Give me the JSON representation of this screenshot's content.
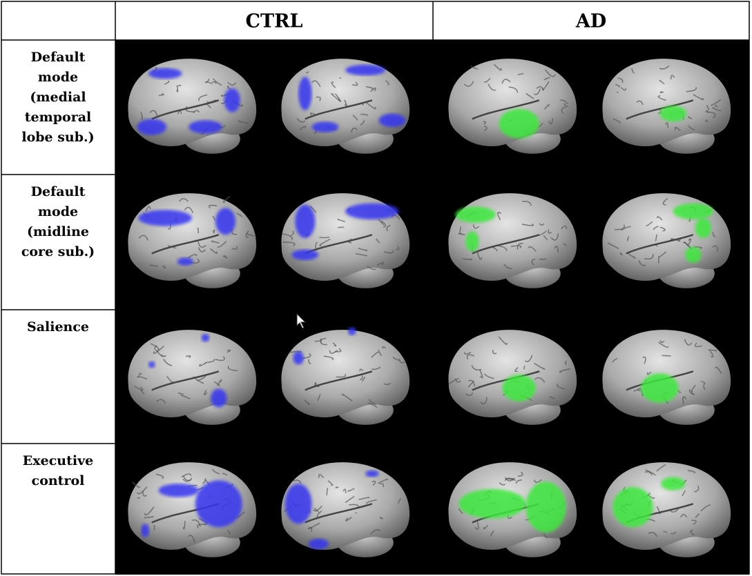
{
  "header": {
    "columns": [
      "CTRL",
      "AD"
    ]
  },
  "rows": [
    {
      "label_lines": [
        "Default",
        "mode",
        "(medial",
        "temporal",
        "lobe sub.)"
      ]
    },
    {
      "label_lines": [
        "Default",
        "mode",
        "(midline",
        "core sub.)"
      ]
    },
    {
      "label_lines": [
        "Salience"
      ]
    },
    {
      "label_lines": [
        "Executive",
        "control"
      ]
    }
  ]
}
